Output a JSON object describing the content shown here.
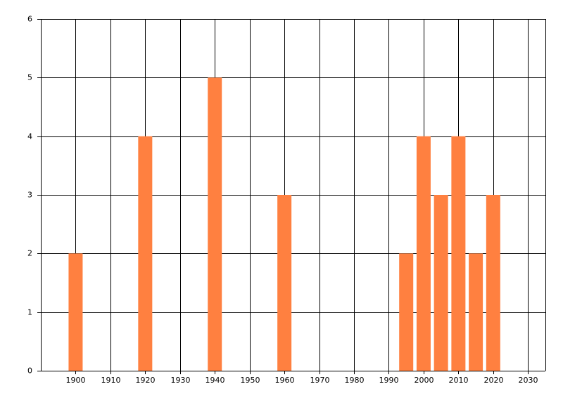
{
  "chart_data": {
    "type": "bar",
    "x": [
      1900,
      1920,
      1940,
      1960,
      1995,
      2000,
      2005,
      2010,
      2015,
      2020
    ],
    "values": [
      2,
      4,
      5,
      3,
      2,
      4,
      3,
      4,
      2,
      3
    ],
    "color": "#ff8040",
    "xlim": [
      1890,
      2035
    ],
    "xticks": [
      1900,
      1910,
      1920,
      1930,
      1940,
      1950,
      1960,
      1970,
      1980,
      1990,
      2000,
      2010,
      2020,
      2030
    ],
    "ylim": [
      0,
      6
    ],
    "yticks": [
      0,
      1,
      2,
      3,
      4,
      5,
      6
    ],
    "grid": true
  }
}
